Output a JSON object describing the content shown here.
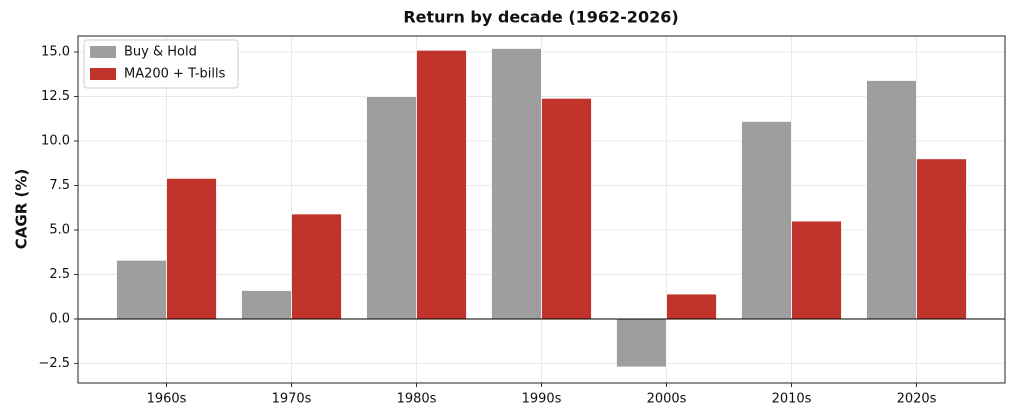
{
  "chart_data": {
    "type": "bar",
    "title": "Return by decade (1962-2026)",
    "y_label": "CAGR (%)",
    "categories": [
      "1960s",
      "1970s",
      "1980s",
      "1990s",
      "2000s",
      "2010s",
      "2020s"
    ],
    "series": [
      {
        "name": "Buy & Hold",
        "color": "#9e9e9e",
        "values": [
          3.3,
          1.6,
          12.5,
          15.2,
          -2.7,
          11.1,
          13.4
        ]
      },
      {
        "name": "MA200 + T-bills",
        "color": "#c0342b",
        "values": [
          7.9,
          5.9,
          15.1,
          12.4,
          1.4,
          5.5,
          9.0
        ]
      }
    ],
    "ylim": [
      -3.6,
      15.9
    ],
    "yticks": [
      {
        "value": -2.5,
        "label": "−2.5"
      },
      {
        "value": 0,
        "label": "0.0"
      },
      {
        "value": 2.5,
        "label": "2.5"
      },
      {
        "value": 5,
        "label": "5.0"
      },
      {
        "value": 7.5,
        "label": "7.5"
      },
      {
        "value": 10,
        "label": "10.0"
      },
      {
        "value": 12.5,
        "label": "12.5"
      },
      {
        "value": 15,
        "label": "15.0"
      }
    ],
    "grid": true,
    "legend": "upper-left"
  }
}
